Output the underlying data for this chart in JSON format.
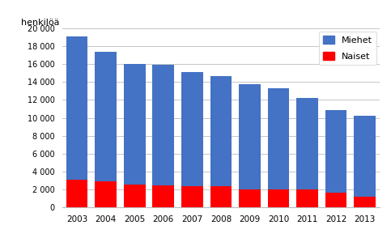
{
  "years": [
    2003,
    2004,
    2005,
    2006,
    2007,
    2008,
    2009,
    2010,
    2011,
    2012,
    2013
  ],
  "naiset": [
    3100,
    2900,
    2500,
    2400,
    2350,
    2350,
    2000,
    2000,
    1950,
    1600,
    1200
  ],
  "miehet": [
    16000,
    14500,
    13500,
    13500,
    12800,
    12350,
    11800,
    11300,
    10250,
    9300,
    9000
  ],
  "color_miehet": "#4472C4",
  "color_naiset": "#FF0000",
  "ylabel": "henkilöä",
  "ylim": [
    0,
    20000
  ],
  "yticks": [
    0,
    2000,
    4000,
    6000,
    8000,
    10000,
    12000,
    14000,
    16000,
    18000,
    20000
  ],
  "ytick_labels": [
    "0",
    "2 000",
    "4 000",
    "6 000",
    "8 000",
    "10 000",
    "12 000",
    "14 000",
    "16 000",
    "18 000",
    "20 000"
  ],
  "legend_miehet": "Miehet",
  "legend_naiset": "Naiset",
  "background_color": "#FFFFFF",
  "grid_color": "#BBBBBB"
}
